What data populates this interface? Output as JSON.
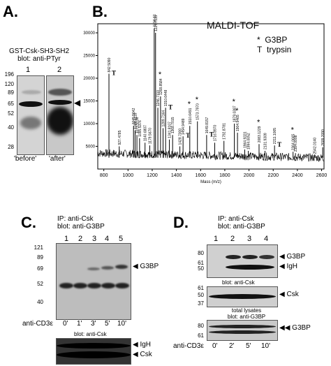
{
  "panelA": {
    "letter": "A.",
    "title_line1": "GST-Csk-SH3-SH2",
    "title_line2": "blot: anti-PTyr",
    "lanes": [
      "1",
      "2"
    ],
    "mw_markers": [
      "196",
      "120",
      "89",
      "65",
      "52",
      "40",
      "28"
    ],
    "captions": [
      "'before'",
      "'after'"
    ]
  },
  "panelB": {
    "letter": "B.",
    "title": "MALDI-TOF",
    "legend": [
      {
        "symbol": "*",
        "label": "G3BP"
      },
      {
        "symbol": "T",
        "label": "trypsin"
      }
    ],
    "xlabel": "Mass (m/z)",
    "peak_labels": [
      "842.5090",
      "837.4930",
      "927.4785",
      "1045.5642",
      "1058.5118",
      "1073.5736",
      "1095.5376",
      "1140.6807",
      "1179.5670",
      "1216.6171",
      "1227.7115",
      "1246.7110",
      "1268.8584",
      "1289.7164",
      "1305.4977",
      "1310.6448",
      "1341.8107",
      "1353.7019",
      "1368.7015",
      "1403.7000",
      "1428.7000",
      "1454.9489",
      "1510.6491",
      "1573.7970",
      "1649.8157",
      "1716.8970",
      "1792.8781",
      "1879.0387",
      "1904.9465",
      "1964.9331",
      "1994.0052",
      "2083.1229",
      "2131.9309",
      "2211.1005",
      "2364.0665",
      "2384.0008",
      "2542.0140",
      "2609.2090"
    ],
    "chart_data": {
      "type": "line",
      "title": "MALDI-TOF",
      "xlabel": "Mass (m/z)",
      "ylabel": "",
      "xlim": [
        750,
        2620
      ],
      "ylim": [
        0,
        32000
      ],
      "x_ticks": [
        800,
        1000,
        1200,
        1400,
        1600,
        1800,
        2000,
        2200,
        2400,
        2600
      ],
      "y_ticks": [
        5000,
        10000,
        15000,
        20000,
        25000,
        30000
      ],
      "peaks": [
        {
          "x": 842.5,
          "y": 21000,
          "marker": "trypsin"
        },
        {
          "x": 927.5,
          "y": 5000,
          "marker": ""
        },
        {
          "x": 1045.6,
          "y": 9500,
          "marker": ""
        },
        {
          "x": 1058.5,
          "y": 8500,
          "marker": ""
        },
        {
          "x": 1073.6,
          "y": 7500,
          "marker": ""
        },
        {
          "x": 1095.5,
          "y": 6800,
          "marker": ""
        },
        {
          "x": 1140.7,
          "y": 5800,
          "marker": ""
        },
        {
          "x": 1179.6,
          "y": 5200,
          "marker": ""
        },
        {
          "x": 1216.6,
          "y": 31000,
          "marker": "G3BP"
        },
        {
          "x": 1227.7,
          "y": 30000,
          "marker": ""
        },
        {
          "x": 1246.7,
          "y": 13500,
          "marker": ""
        },
        {
          "x": 1268.9,
          "y": 16000,
          "marker": "G3BP"
        },
        {
          "x": 1289.7,
          "y": 9000,
          "marker": ""
        },
        {
          "x": 1310.6,
          "y": 13500,
          "marker": "trypsin"
        },
        {
          "x": 1341.8,
          "y": 6500,
          "marker": ""
        },
        {
          "x": 1368.7,
          "y": 7500,
          "marker": ""
        },
        {
          "x": 1428.7,
          "y": 5000,
          "marker": ""
        },
        {
          "x": 1454.9,
          "y": 7200,
          "marker": "trypsin"
        },
        {
          "x": 1510.6,
          "y": 9500,
          "marker": "G3BP"
        },
        {
          "x": 1573.8,
          "y": 10500,
          "marker": "G3BP"
        },
        {
          "x": 1649.8,
          "y": 7500,
          "marker": "trypsin"
        },
        {
          "x": 1716.9,
          "y": 5800,
          "marker": ""
        },
        {
          "x": 1792.9,
          "y": 6200,
          "marker": ""
        },
        {
          "x": 1879.0,
          "y": 10000,
          "marker": "G3BP"
        },
        {
          "x": 1904.9,
          "y": 8000,
          "marker": "G3BP"
        },
        {
          "x": 1964.9,
          "y": 4300,
          "marker": ""
        },
        {
          "x": 1994.0,
          "y": 4000,
          "marker": ""
        },
        {
          "x": 2083.1,
          "y": 5500,
          "marker": "G3BP"
        },
        {
          "x": 2131.9,
          "y": 4000,
          "marker": ""
        },
        {
          "x": 2211.1,
          "y": 5200,
          "marker": "trypsin"
        },
        {
          "x": 2364.1,
          "y": 3800,
          "marker": "G3BP"
        },
        {
          "x": 2384.0,
          "y": 3500,
          "marker": ""
        },
        {
          "x": 2542.0,
          "y": 3000,
          "marker": ""
        },
        {
          "x": 2609.2,
          "y": 4800,
          "marker": ""
        }
      ]
    }
  },
  "panelC": {
    "letter": "C.",
    "title_line1": "IP: anti-Csk",
    "title_line2": "blot: anti-G3BP",
    "lanes": [
      "1",
      "2",
      "3",
      "4",
      "5"
    ],
    "mw_markers": [
      "121",
      "89",
      "69",
      "52",
      "40"
    ],
    "band_label": "G3BP",
    "treatment_label": "anti-CD3ε",
    "timepoints": [
      "0'",
      "1'",
      "3'",
      "5'",
      "10'"
    ],
    "sub_blot_title": "blot: anti-Csk",
    "sub_band_labels": [
      "IgH",
      "Csk"
    ]
  },
  "panelD": {
    "letter": "D.",
    "title_line1": "IP: anti-Csk",
    "title_line2": "blot: anti-G3BP",
    "lanes": [
      "1",
      "2",
      "3",
      "4"
    ],
    "mw_markers_top": [
      "80",
      "61",
      "50"
    ],
    "band_labels_top": [
      "G3BP",
      "IgH"
    ],
    "mid_title": "blot: anti-Csk",
    "mw_markers_mid": [
      "61",
      "50",
      "37"
    ],
    "band_label_mid": "Csk",
    "bottom_title_line1": "total lysates",
    "bottom_title_line2": "blot: anti-G3BP",
    "mw_markers_bottom": [
      "80",
      "61"
    ],
    "band_label_bottom": "G3BP",
    "treatment_label": "anti-CD3ε",
    "timepoints": [
      "0'",
      "2'",
      "5'",
      "10'"
    ]
  }
}
